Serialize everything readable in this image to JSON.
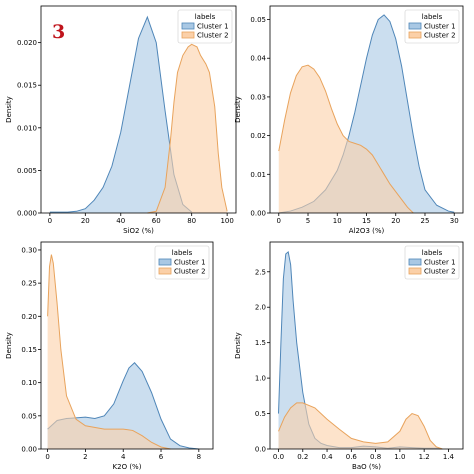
{
  "panel_tag": "3",
  "colors": {
    "cluster1_fill": "#a9c8e4",
    "cluster1_line": "#4f86b8",
    "cluster2_fill": "#fbd0a8",
    "cluster2_line": "#e8a35c",
    "panel_tag": "#c0141c"
  },
  "chart_data": [
    {
      "type": "area",
      "xlabel": "SiO2 (%)",
      "ylabel": "Density",
      "xlim": [
        -5,
        105
      ],
      "ylim": [
        0,
        0.0243
      ],
      "xticks": [
        0,
        20,
        40,
        60,
        80,
        100
      ],
      "yticks": [
        0.0,
        0.005,
        0.01,
        0.015,
        0.02
      ],
      "ytick_labels": [
        "0.000",
        "0.005",
        "0.010",
        "0.015",
        "0.020"
      ],
      "legend": {
        "title": "labels",
        "placement": "top-right"
      },
      "series": [
        {
          "name": "Cluster 1",
          "x": [
            0,
            5,
            10,
            15,
            20,
            25,
            30,
            35,
            40,
            45,
            50,
            55,
            60,
            65,
            70,
            75,
            80
          ],
          "y": [
            0.0001,
            0.0001,
            0.0001,
            0.0002,
            0.0005,
            0.0015,
            0.003,
            0.0055,
            0.0095,
            0.015,
            0.0205,
            0.023,
            0.02,
            0.012,
            0.0045,
            0.001,
            0.0001
          ]
        },
        {
          "name": "Cluster 2",
          "x": [
            55,
            60,
            65,
            68,
            70,
            72,
            75,
            78,
            80,
            83,
            85,
            88,
            90,
            93,
            95,
            97,
            100
          ],
          "y": [
            0.0,
            0.0002,
            0.003,
            0.0085,
            0.013,
            0.0165,
            0.0185,
            0.0195,
            0.0198,
            0.0195,
            0.0185,
            0.0175,
            0.0165,
            0.0125,
            0.007,
            0.003,
            0.0002
          ]
        }
      ]
    },
    {
      "type": "area",
      "xlabel": "Al2O3 (%)",
      "ylabel": "Density",
      "xlim": [
        -1.5,
        31.5
      ],
      "ylim": [
        0,
        0.0535
      ],
      "xticks": [
        0,
        5,
        10,
        15,
        20,
        25,
        30
      ],
      "yticks": [
        0.0,
        0.01,
        0.02,
        0.03,
        0.04,
        0.05
      ],
      "ytick_labels": [
        "0.00",
        "0.01",
        "0.02",
        "0.03",
        "0.04",
        "0.05"
      ],
      "legend": {
        "title": "labels",
        "placement": "top-right"
      },
      "series": [
        {
          "name": "Cluster 1",
          "x": [
            0,
            2,
            4,
            6,
            8,
            10,
            11,
            12,
            13,
            14,
            15,
            16,
            17,
            18,
            19,
            20,
            21,
            22,
            23,
            24,
            25,
            27,
            29,
            30
          ],
          "y": [
            0.0,
            0.0005,
            0.0015,
            0.003,
            0.006,
            0.011,
            0.015,
            0.02,
            0.026,
            0.033,
            0.04,
            0.046,
            0.05,
            0.0512,
            0.0495,
            0.045,
            0.038,
            0.029,
            0.02,
            0.012,
            0.006,
            0.002,
            0.0005,
            0.0002
          ]
        },
        {
          "name": "Cluster 2",
          "x": [
            0,
            1,
            2,
            3,
            4,
            5,
            6,
            7,
            8,
            9,
            10,
            11,
            12,
            13,
            14,
            15,
            16,
            17,
            18,
            19,
            20,
            21,
            22,
            23
          ],
          "y": [
            0.016,
            0.024,
            0.031,
            0.0355,
            0.0378,
            0.0382,
            0.0372,
            0.035,
            0.0315,
            0.027,
            0.023,
            0.02,
            0.0185,
            0.018,
            0.0175,
            0.0165,
            0.015,
            0.0125,
            0.01,
            0.0075,
            0.0055,
            0.0035,
            0.0015,
            0.0
          ]
        }
      ]
    },
    {
      "type": "area",
      "xlabel": "K2O (%)",
      "ylabel": "Density",
      "xlim": [
        -0.35,
        8.75
      ],
      "ylim": [
        0,
        0.312
      ],
      "xticks": [
        0,
        2,
        4,
        6,
        8
      ],
      "yticks": [
        0.0,
        0.05,
        0.1,
        0.15,
        0.2,
        0.25,
        0.3
      ],
      "ytick_labels": [
        "0.00",
        "0.05",
        "0.10",
        "0.15",
        "0.20",
        "0.25",
        "0.30"
      ],
      "legend": {
        "title": "labels",
        "placement": "top-right"
      },
      "series": [
        {
          "name": "Cluster 1",
          "x": [
            0,
            0.5,
            1.0,
            1.5,
            2.0,
            2.5,
            3.0,
            3.5,
            4.0,
            4.3,
            4.6,
            5.0,
            5.5,
            6.0,
            6.5,
            7.0,
            7.5,
            8.0
          ],
          "y": [
            0.03,
            0.043,
            0.046,
            0.047,
            0.048,
            0.046,
            0.05,
            0.068,
            0.103,
            0.122,
            0.13,
            0.117,
            0.085,
            0.045,
            0.015,
            0.005,
            0.0015,
            0.0
          ]
        },
        {
          "name": "Cluster 2",
          "x": [
            0,
            0.1,
            0.2,
            0.3,
            0.5,
            0.7,
            1.0,
            1.5,
            2.0,
            3.0,
            4.0,
            4.5,
            5.0,
            5.5,
            6.0,
            6.5
          ],
          "y": [
            0.2,
            0.275,
            0.293,
            0.28,
            0.22,
            0.15,
            0.08,
            0.045,
            0.035,
            0.03,
            0.03,
            0.028,
            0.02,
            0.01,
            0.003,
            0.0
          ]
        }
      ]
    },
    {
      "type": "area",
      "xlabel": "BaO (%)",
      "ylabel": "Density",
      "xlim": [
        -0.07,
        1.52
      ],
      "ylim": [
        0,
        2.92
      ],
      "xticks": [
        0.0,
        0.2,
        0.4,
        0.6,
        0.8,
        1.0,
        1.2,
        1.4
      ],
      "xtick_labels": [
        "0.0",
        "0.2",
        "0.4",
        "0.6",
        "0.8",
        "1.0",
        "1.2",
        "1.4"
      ],
      "yticks": [
        0.0,
        0.5,
        1.0,
        1.5,
        2.0,
        2.5
      ],
      "ytick_labels": [
        "0.0",
        "0.5",
        "1.0",
        "1.5",
        "2.0",
        "2.5"
      ],
      "legend": {
        "title": "labels",
        "placement": "top-right"
      },
      "series": [
        {
          "name": "Cluster 1",
          "x": [
            0.0,
            0.02,
            0.04,
            0.06,
            0.08,
            0.1,
            0.12,
            0.15,
            0.2,
            0.25,
            0.3,
            0.35,
            0.4,
            0.5,
            0.6,
            0.7,
            0.8,
            0.9,
            1.0,
            1.1,
            1.2,
            1.3,
            1.35
          ],
          "y": [
            0.5,
            1.5,
            2.4,
            2.75,
            2.78,
            2.6,
            2.1,
            1.5,
            0.8,
            0.35,
            0.15,
            0.08,
            0.05,
            0.02,
            0.02,
            0.04,
            0.03,
            0.01,
            0.03,
            0.02,
            0.01,
            0.01,
            0.0
          ]
        },
        {
          "name": "Cluster 2",
          "x": [
            0.0,
            0.05,
            0.1,
            0.15,
            0.2,
            0.3,
            0.4,
            0.5,
            0.6,
            0.7,
            0.8,
            0.9,
            1.0,
            1.05,
            1.1,
            1.15,
            1.2,
            1.25,
            1.3,
            1.35
          ],
          "y": [
            0.25,
            0.45,
            0.58,
            0.65,
            0.65,
            0.58,
            0.42,
            0.28,
            0.15,
            0.1,
            0.08,
            0.1,
            0.25,
            0.42,
            0.5,
            0.47,
            0.32,
            0.12,
            0.03,
            0.0
          ]
        }
      ]
    }
  ]
}
